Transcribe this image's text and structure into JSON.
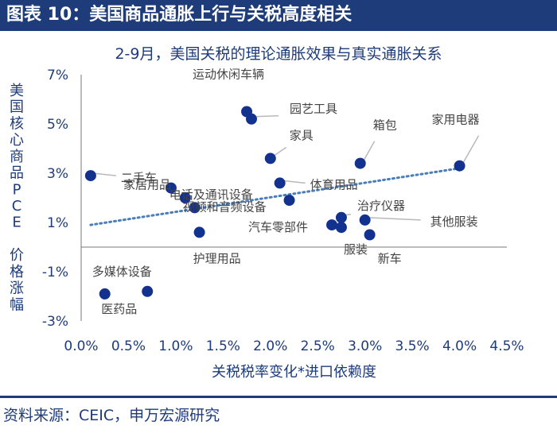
{
  "header": {
    "title": "图表 10：美国商品通胀上行与关税高度相关"
  },
  "source": "资料来源：CEIC，申万宏源研究",
  "colors": {
    "header_bg": "#1e3c7a",
    "point": "#13318f",
    "trend": "#4a7ebb",
    "text": "#1e3c7a"
  },
  "chart_data": {
    "type": "scatter",
    "title": "2-9月，美国关税的理论通胀效果与真实通胀关系",
    "xlabel": "关税税率变化*进口依赖度",
    "ylabel": "美国核心商品PCE 价格涨幅",
    "xlim": [
      0,
      4.5
    ],
    "ylim": [
      -3,
      7
    ],
    "x_ticks": [
      "0.0%",
      "0.5%",
      "1.0%",
      "1.5%",
      "2.0%",
      "2.5%",
      "3.0%",
      "3.5%",
      "4.0%",
      "4.5%"
    ],
    "y_ticks": [
      "7%",
      "5%",
      "3%",
      "1%",
      "-1%",
      "-3%"
    ],
    "grid": false,
    "trendline": {
      "style": "dotted",
      "x": [
        0.1,
        4.0
      ],
      "y": [
        0.9,
        3.2
      ]
    },
    "points": [
      {
        "label": "运动休闲车辆",
        "x": 1.75,
        "y": 5.5
      },
      {
        "label": "园艺工具",
        "x": 1.8,
        "y": 5.2
      },
      {
        "label": "家具",
        "x": 2.0,
        "y": 3.6
      },
      {
        "label": "家用电器",
        "x": 4.0,
        "y": 3.3
      },
      {
        "label": "箱包",
        "x": 2.95,
        "y": 3.4
      },
      {
        "label": "二手车",
        "x": 0.1,
        "y": 2.9
      },
      {
        "label": "家居用品",
        "x": 0.95,
        "y": 2.4
      },
      {
        "label": "电话及通讯设备",
        "x": 1.1,
        "y": 2.0
      },
      {
        "label": "视频和音频设备",
        "x": 1.2,
        "y": 1.6
      },
      {
        "label": "体育用品",
        "x": 2.1,
        "y": 2.6
      },
      {
        "label": "",
        "x": 2.2,
        "y": 1.9
      },
      {
        "label": "汽车零部件",
        "x": 2.65,
        "y": 0.9
      },
      {
        "label": "治疗仪器",
        "x": 2.75,
        "y": 1.2
      },
      {
        "label": "其他服装",
        "x": 3.0,
        "y": 1.1
      },
      {
        "label": "服装",
        "x": 2.75,
        "y": 0.8
      },
      {
        "label": "新车",
        "x": 3.05,
        "y": 0.5
      },
      {
        "label": "护理用品",
        "x": 1.25,
        "y": 0.6
      },
      {
        "label": "多媒体设备",
        "x": 0.25,
        "y": -1.9
      },
      {
        "label": "医药品",
        "x": 0.7,
        "y": -1.8
      }
    ]
  }
}
